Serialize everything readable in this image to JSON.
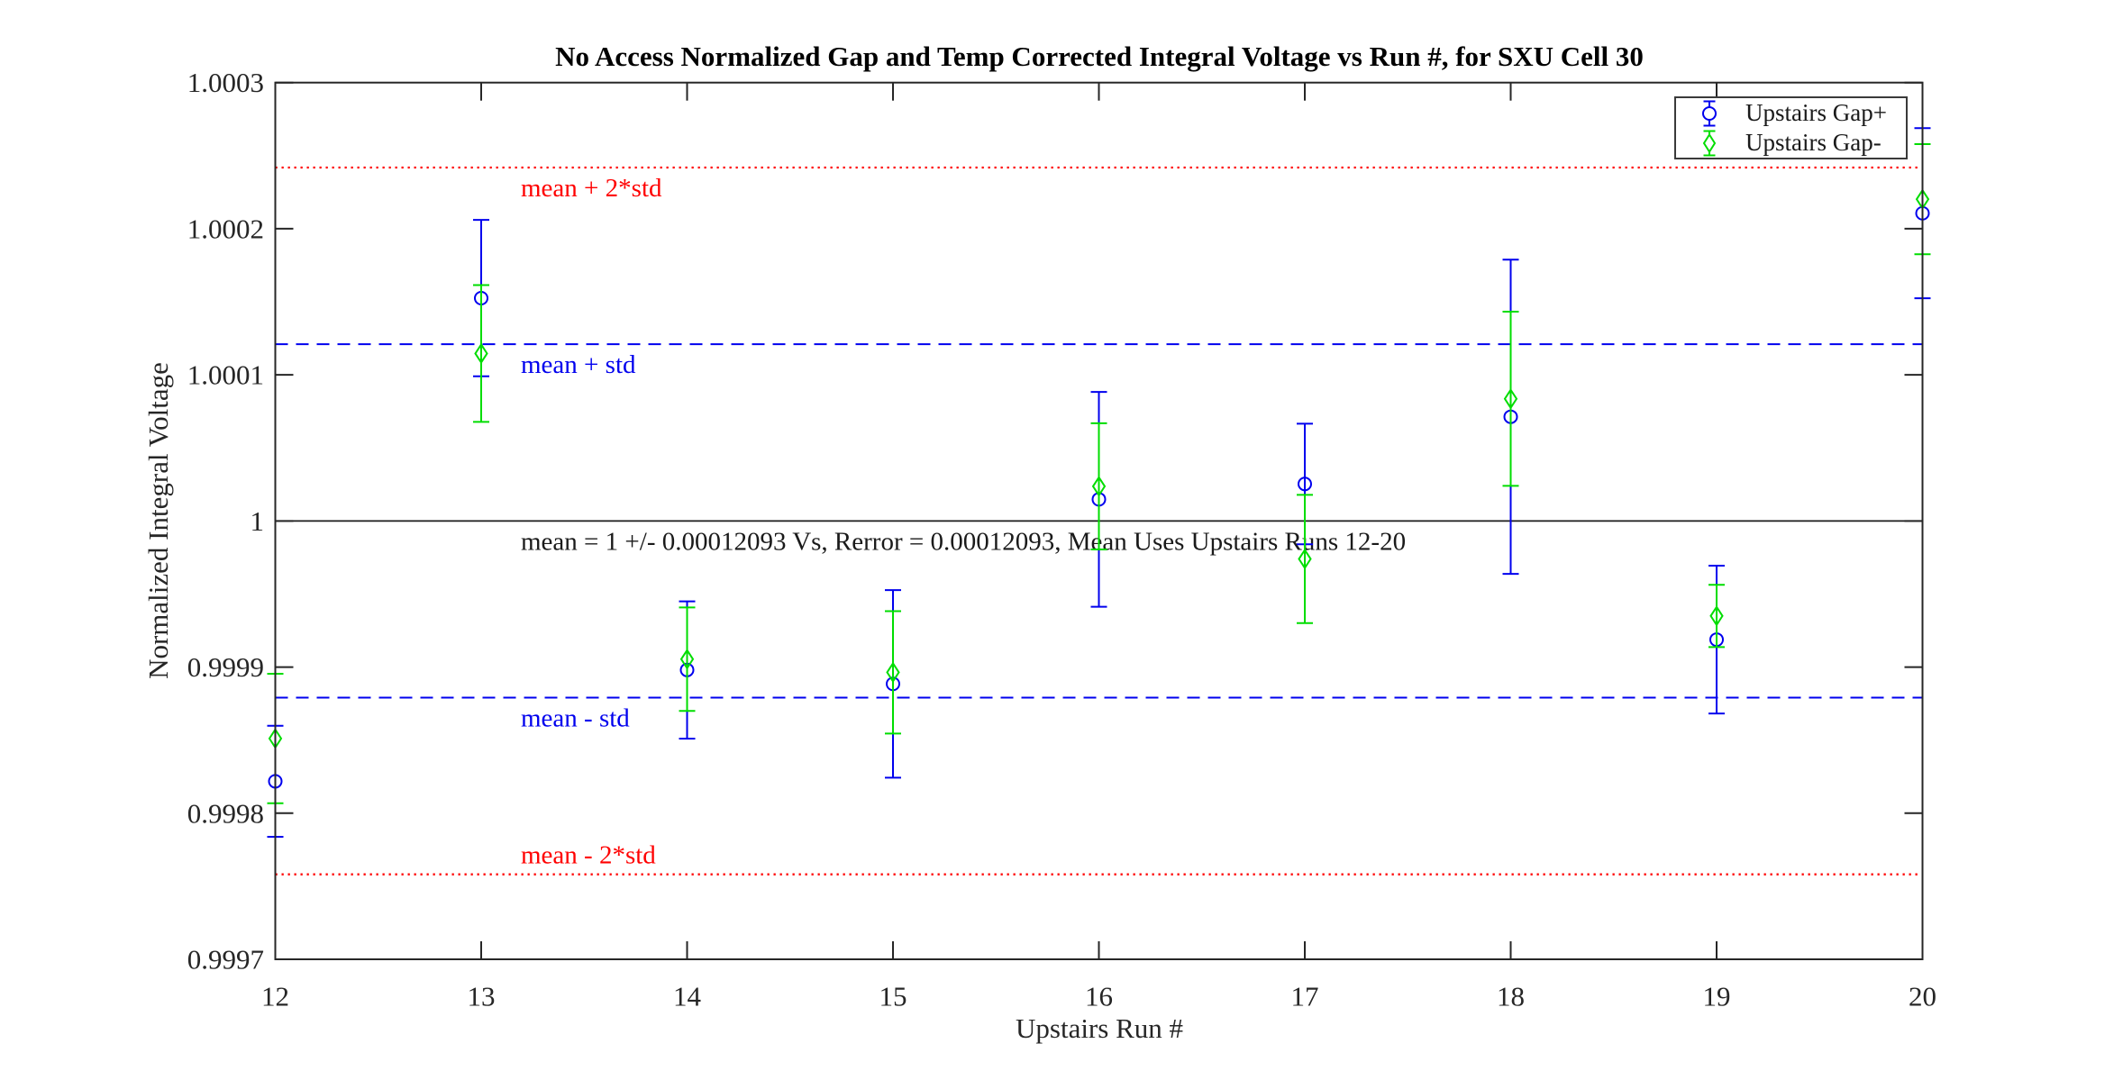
{
  "chart_data": {
    "type": "scatter",
    "title": "No Access Normalized Gap and Temp Corrected Integral Voltage vs Run #, for SXU Cell 30",
    "xlabel": "Upstairs Run #",
    "ylabel": "Normalized Integral Voltage",
    "xlim": [
      12,
      20
    ],
    "ylim": [
      0.9997,
      1.0003
    ],
    "grid": false,
    "xticks": [
      "12",
      "13",
      "14",
      "15",
      "16",
      "17",
      "18",
      "19",
      "20"
    ],
    "yticks": [
      {
        "value": 1.0003,
        "label": "1.0003"
      },
      {
        "value": 1.0002,
        "label": "1.0002"
      },
      {
        "value": 1.0001,
        "label": "1.0001"
      },
      {
        "value": 1.0,
        "label": "1"
      },
      {
        "value": 0.9999,
        "label": "0.9999"
      },
      {
        "value": 0.9998,
        "label": "0.9998"
      },
      {
        "value": 0.9997,
        "label": "0.9997"
      }
    ],
    "x": [
      12,
      13,
      14,
      15,
      16,
      17,
      18,
      19,
      20
    ],
    "series": [
      {
        "name": "Upstairs Gap+",
        "marker": "circle",
        "color": "#0000EE",
        "values": [
          0.9998218,
          1.0001525,
          0.999898,
          0.9998885,
          1.0000148,
          1.0000253,
          1.0000713,
          0.9999188,
          1.0002106
        ],
        "errors": [
          3.8e-05,
          5.35e-05,
          4.7e-05,
          6.42e-05,
          7.35e-05,
          4.13e-05,
          0.0001075,
          5.06e-05,
          5.82e-05
        ]
      },
      {
        "name": "Upstairs Gap-",
        "marker": "diamond",
        "color": "#00DD00",
        "values": [
          0.9998511,
          1.0001146,
          0.9999054,
          0.9998964,
          1.0000237,
          0.999974,
          1.0000836,
          0.999935,
          1.0002202
        ],
        "errors": [
          4.43e-05,
          4.68e-05,
          3.54e-05,
          4.19e-05,
          4.32e-05,
          4.39e-05,
          5.96e-05,
          2.13e-05,
          3.77e-05
        ]
      }
    ],
    "ref_lines": [
      {
        "label": "mean + 2*std",
        "value": 1.00024186,
        "color": "#FF0000",
        "style": "dotted",
        "label_side": "below"
      },
      {
        "label": "mean + std",
        "value": 1.00012093,
        "color": "#0000EE",
        "style": "dashed",
        "label_side": "below"
      },
      {
        "label": "mean = 1 +/- 0.00012093 Vs, Rerror = 0.00012093, Mean Uses Upstairs Runs 12-20",
        "value": 1.0,
        "color": "#1a1a1a",
        "style": "solid",
        "label_side": "below"
      },
      {
        "label": "mean - std",
        "value": 0.99987907,
        "color": "#0000EE",
        "style": "dashed",
        "label_side": "below"
      },
      {
        "label": "mean - 2*std",
        "value": 0.99975814,
        "color": "#FF0000",
        "style": "dotted",
        "label_side": "above"
      }
    ],
    "legend": {
      "position": "top-right",
      "items": [
        {
          "label": "Upstairs Gap+",
          "marker": "circle",
          "color": "#0000EE"
        },
        {
          "label": "Upstairs Gap-",
          "marker": "diamond",
          "color": "#00DD00"
        }
      ]
    },
    "stats": {
      "mean": 1,
      "std": 0.00012093,
      "rerror": 0.00012093,
      "runs_used": "12-20"
    }
  },
  "colors": {
    "gap_plus": "#0000EE",
    "gap_minus": "#00DD00",
    "two_std_line": "#FF0000",
    "one_std_line": "#0000EE",
    "mean_line": "#1a1a1a",
    "axis": "#262626",
    "background": "#ffffff"
  }
}
